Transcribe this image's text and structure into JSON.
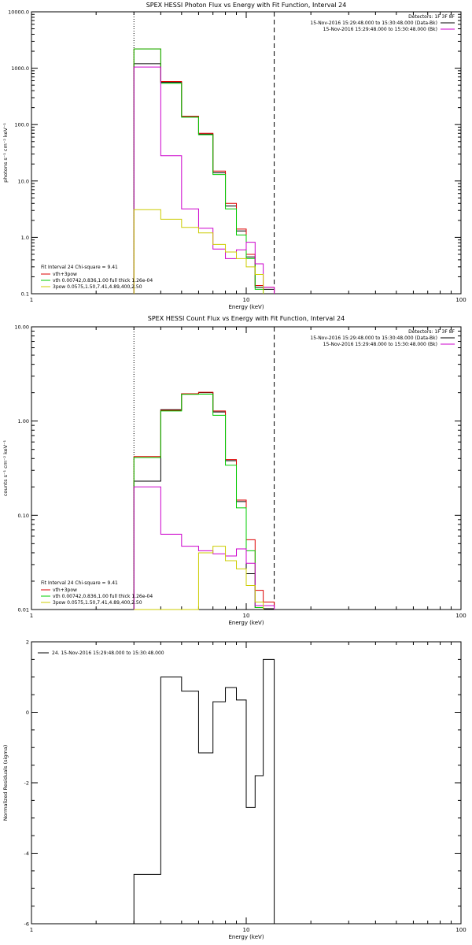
{
  "chart_data": [
    {
      "type": "line",
      "title": "SPEX HESSI Photon Flux vs Energy with Fit Function, Interval 24",
      "xlabel": "Energy (keV)",
      "ylabel": "photons s⁻¹ cm⁻² keV⁻¹",
      "xscale": "log",
      "yscale": "log",
      "xlim": [
        1,
        100
      ],
      "ylim": [
        0.1,
        10000
      ],
      "x_ticks": [
        1,
        10,
        100
      ],
      "x_tick_labels": [
        "1",
        "10",
        "100"
      ],
      "y_ticks": [
        0.1,
        1,
        10,
        100,
        1000,
        10000
      ],
      "y_tick_labels": [
        "0.1",
        "1.0",
        "10.0",
        "100.0",
        "1000.0",
        "10000.0"
      ],
      "bin_edges": [
        3.0,
        4.0,
        5.0,
        6.0,
        7.0,
        8.0,
        9.0,
        10.0,
        11.0,
        12.0,
        13.5
      ],
      "vlines": [
        {
          "x": 3.0,
          "style": "dotted"
        },
        {
          "x": 13.5,
          "style": "dashed"
        }
      ],
      "legend_top": {
        "placement": "top-right",
        "header": "Detectors: 1F 3F 8F",
        "entries": [
          {
            "text": "15-Nov-2016 15:29:48.000 to 15:30:48.000 (Data-Bk)",
            "color": "#000000"
          },
          {
            "text": "15-Nov-2016 15:29:48.000 to 15:30:48.000 (Bk)",
            "color": "#cc00cc"
          }
        ]
      },
      "legend_bottom": {
        "placement": "bottom-left",
        "header": "Fit Interval 24   Chi-square = 9.41",
        "entries": [
          {
            "text": "vth+3pow",
            "color": "#dd0000"
          },
          {
            "text": "vth 0.00742,0.836,1.00  full thick 1.26e-04",
            "color": "#00cc00"
          },
          {
            "text": "3pow 0.0575,1.50,7.41,4.89,400,2.50",
            "color": "#cccc00"
          }
        ]
      },
      "series": [
        {
          "color": "#000000",
          "values": [
            1200,
            560,
            140,
            68,
            14,
            3.6,
            1.3,
            0.45,
            0.13,
            0.12
          ]
        },
        {
          "color": "#dd0000",
          "values": [
            2200,
            580,
            140,
            70,
            15,
            4.0,
            1.4,
            0.5,
            0.14,
            0.13
          ]
        },
        {
          "color": "#00cc00",
          "values": [
            2200,
            540,
            135,
            66,
            13,
            3.2,
            1.1,
            0.42,
            0.12
          ]
        },
        {
          "color": "#cc00cc",
          "values": [
            1050,
            28,
            3.2,
            1.45,
            0.62,
            0.42,
            0.6,
            0.82,
            0.34,
            0.13
          ]
        },
        {
          "color": "#cccc00",
          "values": [
            3.1,
            2.1,
            1.5,
            1.2,
            0.75,
            0.55,
            0.42,
            0.3,
            0.22
          ]
        }
      ]
    },
    {
      "type": "line",
      "title": "SPEX HESSI Count Flux vs Energy with Fit Function, Interval 24",
      "xlabel": "Energy (keV)",
      "ylabel": "counts s⁻¹ cm⁻² keV⁻¹",
      "xscale": "log",
      "yscale": "log",
      "xlim": [
        1,
        100
      ],
      "ylim": [
        0.01,
        10
      ],
      "x_ticks": [
        1,
        10,
        100
      ],
      "x_tick_labels": [
        "1",
        "10",
        "100"
      ],
      "y_ticks": [
        0.01,
        0.1,
        1,
        10
      ],
      "y_tick_labels": [
        "0.01",
        "0.10",
        "1.00",
        "10.00"
      ],
      "bin_edges": [
        3.0,
        4.0,
        5.0,
        6.0,
        7.0,
        8.0,
        9.0,
        10.0,
        11.0,
        12.0,
        13.5
      ],
      "vlines": [
        {
          "x": 3.0,
          "style": "dotted"
        },
        {
          "x": 13.5,
          "style": "dashed"
        }
      ],
      "legend_top": {
        "placement": "top-right",
        "header": "Detectors: 1F 3F 8F",
        "entries": [
          {
            "text": "15-Nov-2016 15:29:48.000 to 15:30:48.000 (Data-Bk)",
            "color": "#000000"
          },
          {
            "text": "15-Nov-2016 15:29:48.000 to 15:30:48.000 (Bk)",
            "color": "#cc00cc"
          }
        ]
      },
      "legend_bottom": {
        "placement": "bottom-left",
        "header": "Fit Interval 24   Chi-square = 9.41",
        "entries": [
          {
            "text": "vth+3pow",
            "color": "#dd0000"
          },
          {
            "text": "vth 0.00742,0.836,1.00  full thick 1.26e-04",
            "color": "#00cc00"
          },
          {
            "text": "3pow 0.0575,1.50,7.41,4.89,400,2.50",
            "color": "#cccc00"
          }
        ]
      },
      "series": [
        {
          "color": "#000000",
          "values": [
            0.23,
            1.32,
            1.95,
            2.0,
            1.25,
            0.38,
            0.14,
            0.024,
            0.0105,
            0.0102
          ]
        },
        {
          "color": "#dd0000",
          "values": [
            0.42,
            1.3,
            1.95,
            2.02,
            1.28,
            0.39,
            0.145,
            0.055,
            0.016,
            0.012
          ]
        },
        {
          "color": "#00cc00",
          "values": [
            0.41,
            1.28,
            1.92,
            1.93,
            1.15,
            0.34,
            0.12,
            0.042,
            0.0105
          ]
        },
        {
          "color": "#cc00cc",
          "values": [
            0.2,
            0.063,
            0.047,
            0.042,
            0.039,
            0.037,
            0.044,
            0.031,
            0.011,
            0.011
          ]
        },
        {
          "color": "#cccc00",
          "values": [
            0.0075,
            0.0075,
            0.0075,
            0.04,
            0.047,
            0.033,
            0.027,
            0.018,
            0.012
          ]
        }
      ]
    },
    {
      "type": "line",
      "title": "",
      "xlabel": "Energy (keV)",
      "ylabel": "Normalized Residuals (sigma)",
      "xscale": "log",
      "yscale": "linear",
      "xlim": [
        1,
        100
      ],
      "ylim": [
        -6,
        2
      ],
      "x_ticks": [
        1,
        10,
        100
      ],
      "x_tick_labels": [
        "1",
        "10",
        "100"
      ],
      "y_ticks": [
        -6,
        -4,
        -2,
        0,
        2
      ],
      "y_tick_labels": [
        "-6",
        "-4",
        "-2",
        "0",
        "2"
      ],
      "bin_edges": [
        3.0,
        4.0,
        5.0,
        6.0,
        7.0,
        8.0,
        9.0,
        10.0,
        11.0,
        12.0,
        13.5
      ],
      "legend_top": {
        "placement": "top-left",
        "entries": [
          {
            "text": "24. 15-Nov-2016 15:29:48.000 to 15:30:48.000",
            "color": "#000000"
          }
        ]
      },
      "series": [
        {
          "color": "#000000",
          "values": [
            -4.6,
            1.0,
            0.6,
            -1.15,
            0.3,
            0.7,
            0.35,
            -2.7,
            -1.8,
            1.5
          ]
        }
      ]
    }
  ]
}
